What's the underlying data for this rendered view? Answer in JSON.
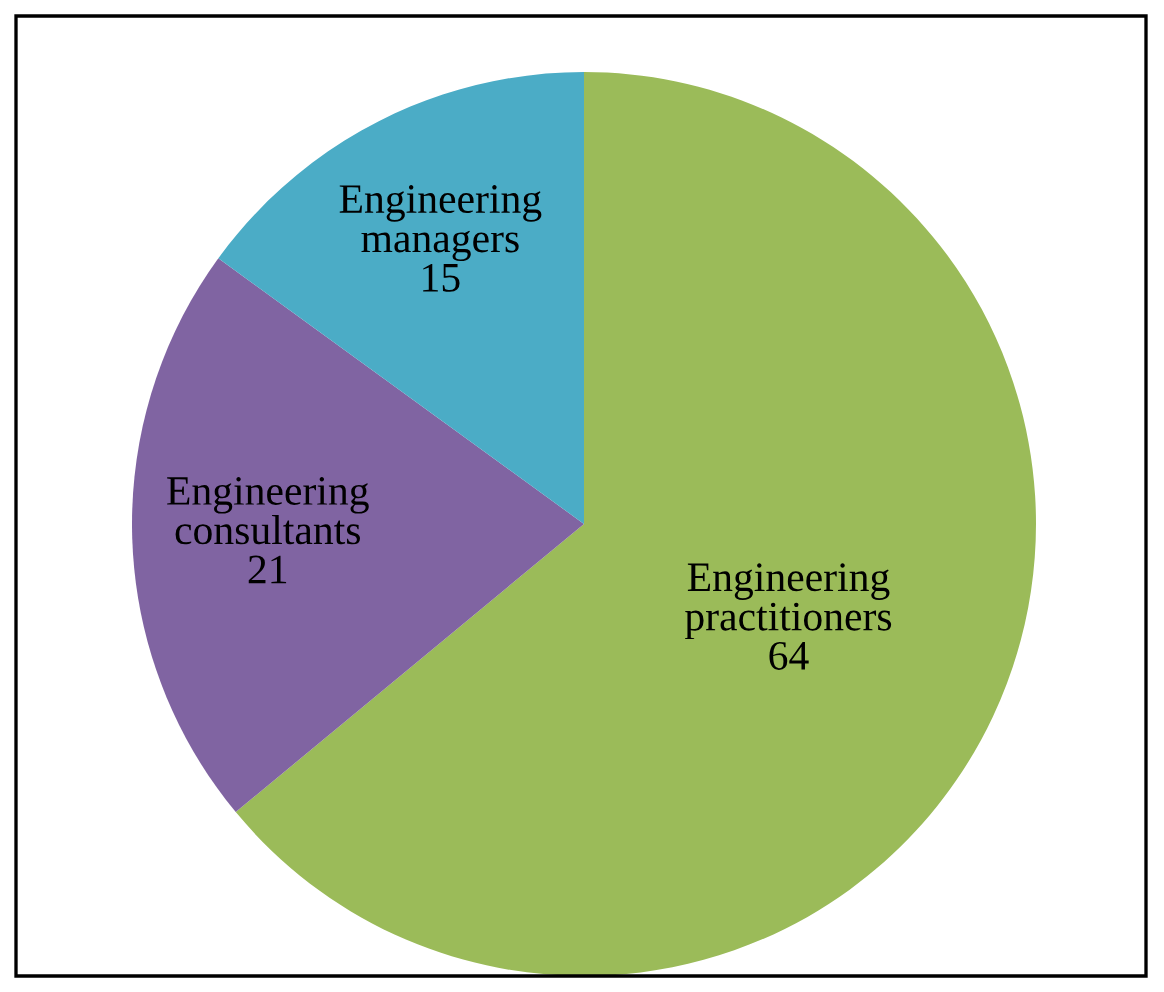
{
  "chart_data": {
    "type": "pie",
    "categories": [
      "Engineering\npractitioners",
      "Engineering\nconsultants",
      "Engineering\nmanagers"
    ],
    "values": [
      64,
      21,
      15
    ],
    "colors": [
      "#9bbb59",
      "#8064a2",
      "#4bacc6"
    ],
    "data_labels": true
  }
}
